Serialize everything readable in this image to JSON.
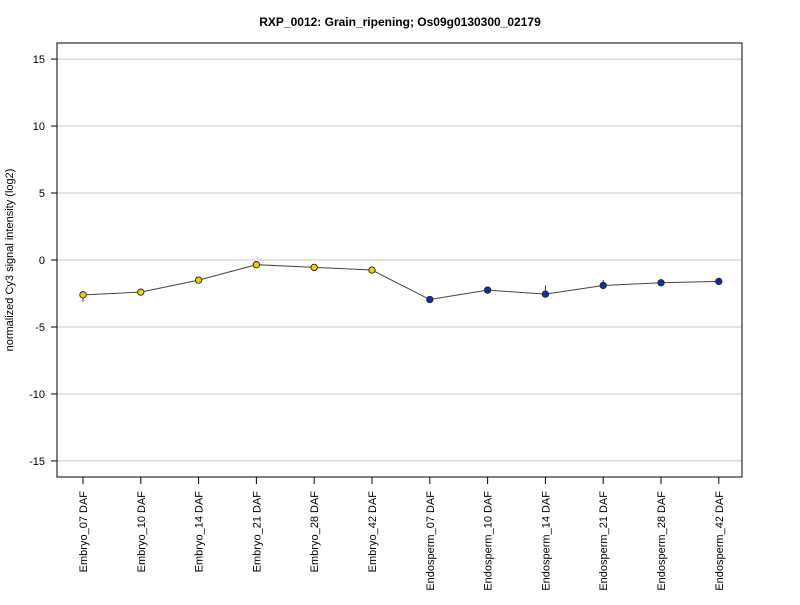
{
  "chart_data": {
    "type": "line",
    "title": "RXP_0012: Grain_ripening; Os09g0130300_02179",
    "xlabel": "",
    "ylabel": "normalized Cy3 signal intensity (log2)",
    "ylim": [
      -16.2,
      16.2
    ],
    "yticks": [
      -15,
      -10,
      -5,
      0,
      5,
      10,
      15
    ],
    "grid": true,
    "categories": [
      "Embryo_07 DAF",
      "Embryo_10 DAF",
      "Embryo_14 DAF",
      "Embryo_21 DAF",
      "Embryo_28 DAF",
      "Embryo_42 DAF",
      "Endosperm_07 DAF",
      "Endosperm_10 DAF",
      "Endosperm_14 DAF",
      "Endosperm_21 DAF",
      "Endosperm_28 DAF",
      "Endosperm_42 DAF"
    ],
    "series": [
      {
        "values": [
          -2.6,
          -2.4,
          -1.5,
          -0.35,
          -0.55,
          -0.75,
          -2.95,
          -2.25,
          -2.55,
          -1.9,
          -1.7,
          -1.6
        ],
        "error_low": [
          -3.1,
          -2.4,
          -1.5,
          -0.35,
          -0.55,
          -0.75,
          -3.0,
          -2.25,
          -1.9,
          -1.9,
          -1.7,
          -1.6
        ],
        "error_high": [
          -2.6,
          -2.4,
          -1.5,
          -0.35,
          -0.55,
          -0.75,
          -2.95,
          -2.25,
          -2.55,
          -1.5,
          -1.7,
          -1.6
        ],
        "point_colors": [
          "#f0d000",
          "#f0d000",
          "#f0d000",
          "#f0d000",
          "#f0d000",
          "#f0d000",
          "#1030a0",
          "#1030a0",
          "#1030a0",
          "#1030a0",
          "#1030a0",
          "#1030a0"
        ]
      }
    ],
    "colors": {
      "embryo": "#f0d000",
      "endosperm": "#1030a0",
      "line": "#444444",
      "grid": "#c8c8c8"
    }
  }
}
